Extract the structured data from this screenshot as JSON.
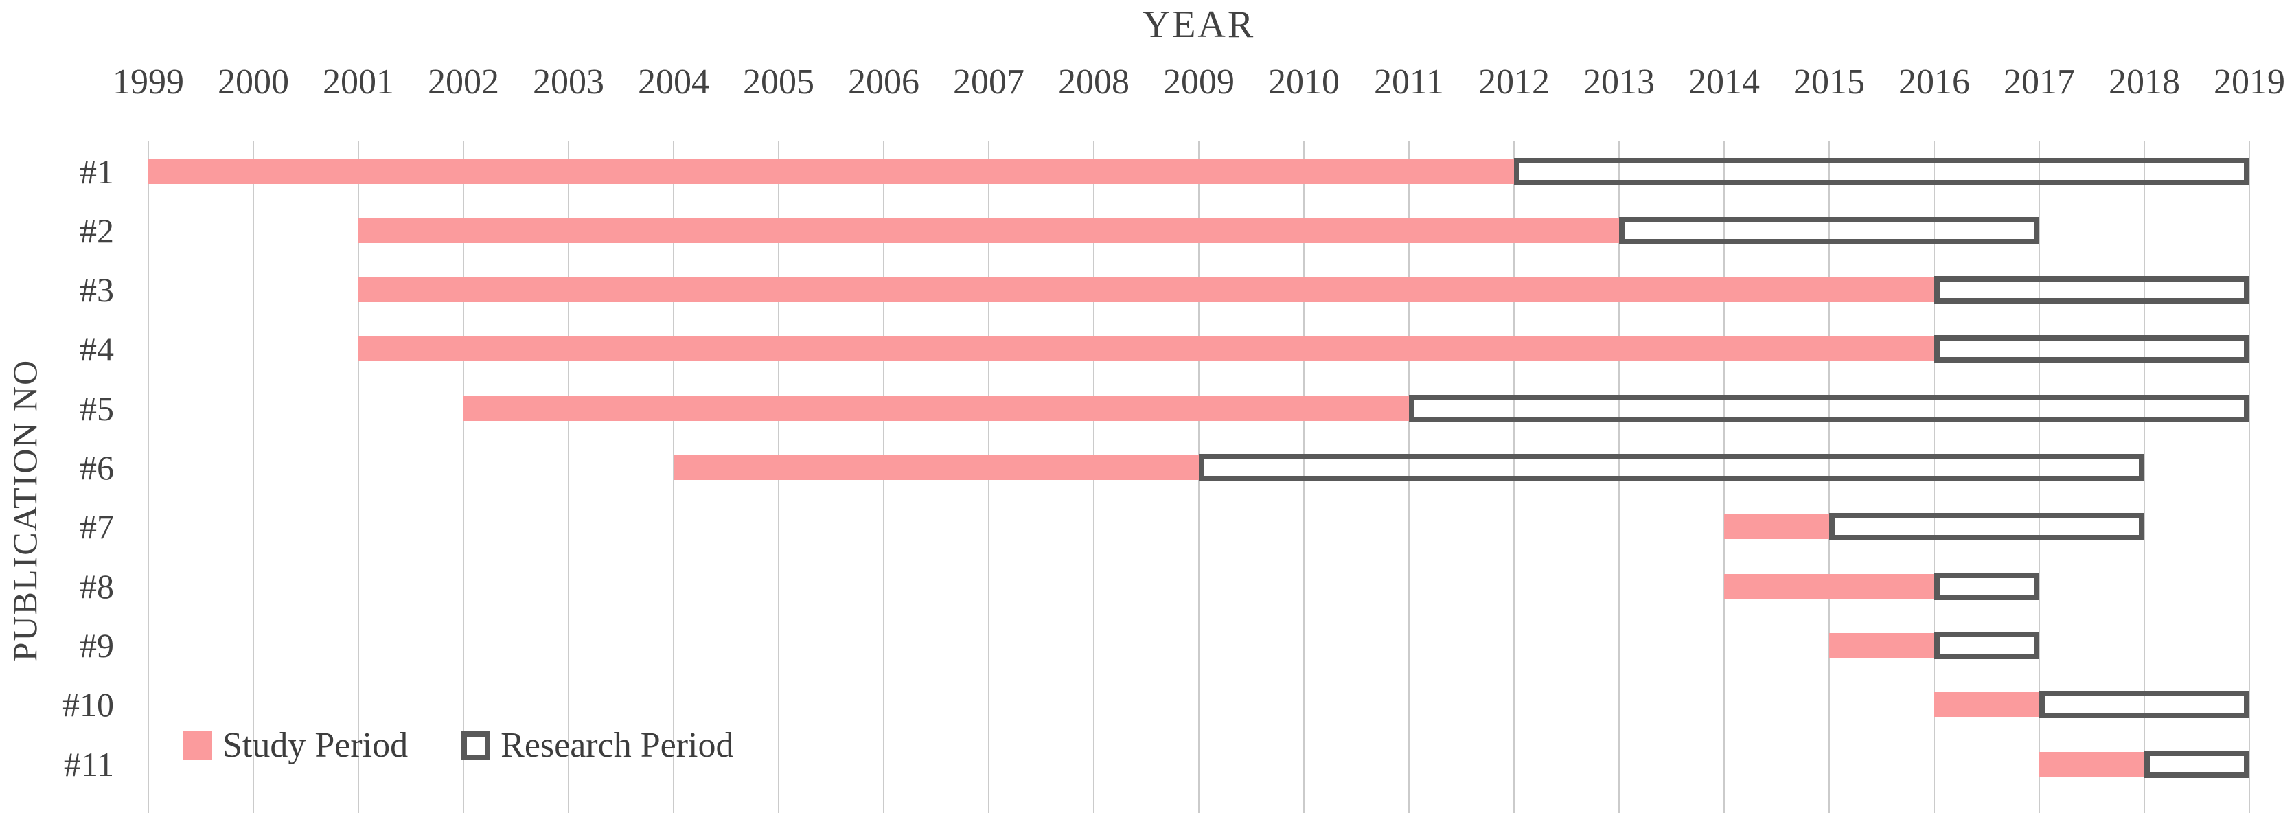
{
  "colors": {
    "study_fill": "#FB9B9D",
    "research_outline": "#595959",
    "text": "#424242",
    "gridline": "#CBCBCB",
    "background": "#FFFFFF"
  },
  "chart_data": {
    "type": "bar",
    "subtype": "gantt",
    "title": "YEAR",
    "xlabel": "YEAR",
    "ylabel": "PUBLICATION NO",
    "x_axis": {
      "min": 1999,
      "max": 2019,
      "tick_labels": [
        "1999",
        "2000",
        "2001",
        "2002",
        "2003",
        "2004",
        "2005",
        "2006",
        "2007",
        "2008",
        "2009",
        "2010",
        "2011",
        "2012",
        "2013",
        "2014",
        "2015",
        "2016",
        "2017",
        "2018",
        "2019"
      ],
      "grid": true
    },
    "legend": [
      {
        "label": "Study Period",
        "style": "filled"
      },
      {
        "label": "Research Period",
        "style": "outlined"
      }
    ],
    "legend_position": "inside-bottom-left",
    "rows": [
      {
        "label": "#1",
        "study_start": 1999,
        "study_end": 2012,
        "research_start": 2012,
        "research_end": 2019
      },
      {
        "label": "#2",
        "study_start": 2001,
        "study_end": 2013,
        "research_start": 2013,
        "research_end": 2017
      },
      {
        "label": "#3",
        "study_start": 2001,
        "study_end": 2016,
        "research_start": 2016,
        "research_end": 2019
      },
      {
        "label": "#4",
        "study_start": 2001,
        "study_end": 2016,
        "research_start": 2016,
        "research_end": 2019
      },
      {
        "label": "#5",
        "study_start": 2002,
        "study_end": 2011,
        "research_start": 2011,
        "research_end": 2019
      },
      {
        "label": "#6",
        "study_start": 2004,
        "study_end": 2009,
        "research_start": 2009,
        "research_end": 2018
      },
      {
        "label": "#7",
        "study_start": 2014,
        "study_end": 2015,
        "research_start": 2015,
        "research_end": 2018
      },
      {
        "label": "#8",
        "study_start": 2014,
        "study_end": 2016,
        "research_start": 2016,
        "research_end": 2017
      },
      {
        "label": "#9",
        "study_start": 2015,
        "study_end": 2016,
        "research_start": 2016,
        "research_end": 2017
      },
      {
        "label": "#10",
        "study_start": 2016,
        "study_end": 2017,
        "research_start": 2017,
        "research_end": 2019
      },
      {
        "label": "#11",
        "study_start": 2017,
        "study_end": 2018,
        "research_start": 2018,
        "research_end": 2019
      }
    ]
  }
}
